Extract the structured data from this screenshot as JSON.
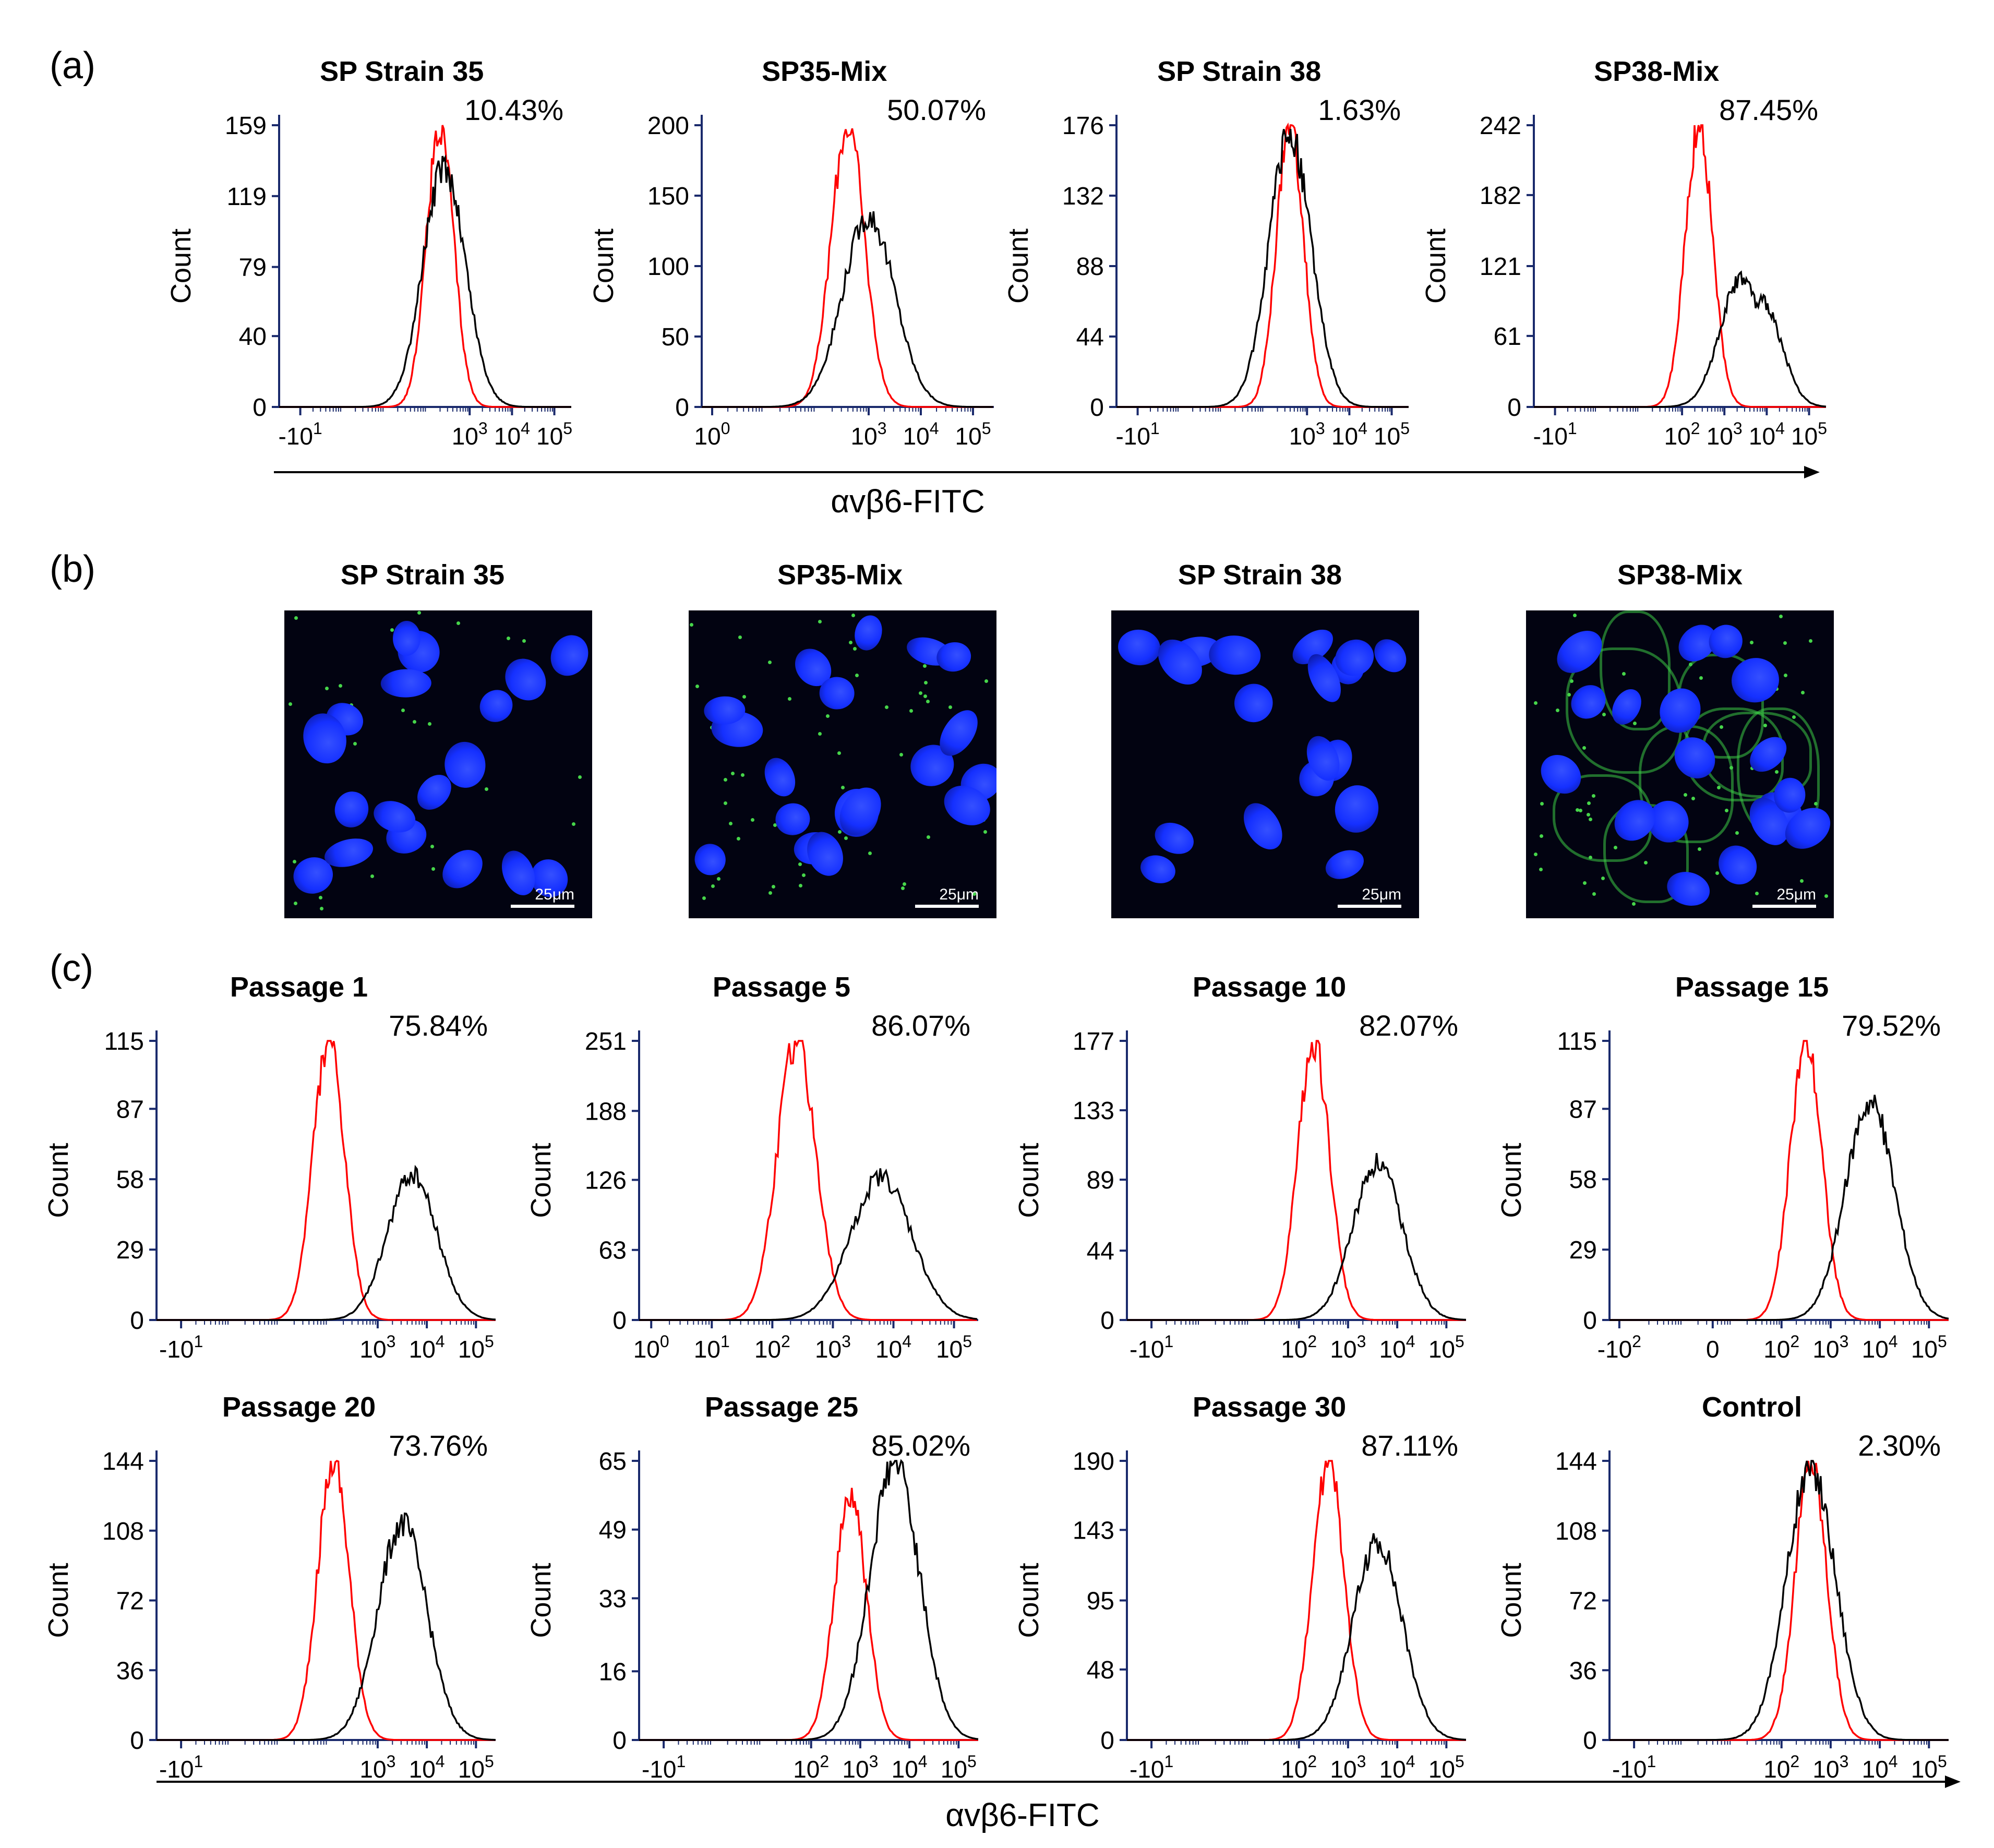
{
  "panel_letters": {
    "a": "(a)",
    "b": "(b)",
    "c": "(c)"
  },
  "x_axis_label": "αvβ6-FITC",
  "y_axis_label": "Count",
  "scale_bar_label": "25μm",
  "colors": {
    "isotype_control": "#ff0000",
    "sample": "#000000",
    "axis": "#1a2a6c",
    "nuclei": "#1530ff",
    "membrane": "#3ccf46",
    "background": "#020311"
  },
  "chart_data": [
    {
      "id": "a1",
      "type": "line",
      "title": "SP Strain 35",
      "percent": "10.43%",
      "ylabel": "Count",
      "xlabel": "αvβ6-FITC",
      "y_ticks": [
        "0",
        "40",
        "79",
        "119",
        "159"
      ],
      "x_ticks": [
        "-10^1",
        "10^3",
        "10^4",
        "10^5"
      ],
      "xscale": "logicle",
      "ylim": [
        0,
        159
      ],
      "series": [
        {
          "color": "red",
          "peak_log10_x": 2.3,
          "peak_count": 159
        },
        {
          "color": "black",
          "peak_log10_x": 2.4,
          "peak_count": 135
        }
      ]
    },
    {
      "id": "a2",
      "type": "line",
      "title": "SP35-Mix",
      "percent": "50.07%",
      "ylabel": "Count",
      "xlabel": "αvβ6-FITC",
      "y_ticks": [
        "0",
        "50",
        "100",
        "150",
        "200"
      ],
      "x_ticks": [
        "10^0",
        "10^3",
        "10^4",
        "10^5"
      ],
      "xscale": "log",
      "ylim": [
        0,
        200
      ],
      "series": [
        {
          "color": "red",
          "peak_log10_x": 2.6,
          "peak_count": 200
        },
        {
          "color": "black",
          "peak_log10_x": 3.0,
          "peak_count": 135
        }
      ]
    },
    {
      "id": "a3",
      "type": "line",
      "title": "SP Strain 38",
      "percent": "1.63%",
      "ylabel": "Count",
      "xlabel": "αvβ6-FITC",
      "y_ticks": [
        "0",
        "44",
        "88",
        "132",
        "176"
      ],
      "x_ticks": [
        "-10^1",
        "10^3",
        "10^4",
        "10^5"
      ],
      "xscale": "logicle",
      "ylim": [
        0,
        176
      ],
      "series": [
        {
          "color": "red",
          "peak_log10_x": 2.6,
          "peak_count": 176
        },
        {
          "color": "black",
          "peak_log10_x": 2.6,
          "peak_count": 170
        }
      ]
    },
    {
      "id": "a4",
      "type": "line",
      "title": "SP38-Mix",
      "percent": "87.45%",
      "ylabel": "Count",
      "xlabel": "αvβ6-FITC",
      "y_ticks": [
        "0",
        "61",
        "121",
        "182",
        "242"
      ],
      "x_ticks": [
        "-10^1",
        "10^2",
        "10^3",
        "10^4",
        "10^5"
      ],
      "xscale": "logicle",
      "ylim": [
        0,
        242
      ],
      "series": [
        {
          "color": "red",
          "peak_log10_x": 2.4,
          "peak_count": 242
        },
        {
          "color": "black",
          "peak_log10_x": 3.4,
          "peak_count": 110,
          "second_peak_log10_x": 3.9,
          "second_peak_count": 90
        }
      ]
    },
    {
      "id": "c1",
      "type": "line",
      "title": "Passage 1",
      "percent": "75.84%",
      "ylabel": "Count",
      "xlabel": "αvβ6-FITC",
      "y_ticks": [
        "0",
        "29",
        "58",
        "87",
        "115"
      ],
      "x_ticks": [
        "-10^1",
        "10^3",
        "10^4",
        "10^5"
      ],
      "xscale": "logicle",
      "ylim": [
        0,
        115
      ],
      "series": [
        {
          "color": "red",
          "peak_log10_x": 2.0,
          "peak_count": 115
        },
        {
          "color": "black",
          "peak_log10_x": 3.7,
          "peak_count": 60
        }
      ]
    },
    {
      "id": "c2",
      "type": "line",
      "title": "Passage 5",
      "percent": "86.07%",
      "ylabel": "Count",
      "xlabel": "αvβ6-FITC",
      "y_ticks": [
        "0",
        "63",
        "126",
        "188",
        "251"
      ],
      "x_ticks": [
        "10^0",
        "10^1",
        "10^2",
        "10^3",
        "10^4",
        "10^5"
      ],
      "xscale": "log",
      "ylim": [
        0,
        251
      ],
      "series": [
        {
          "color": "red",
          "peak_log10_x": 2.4,
          "peak_count": 251
        },
        {
          "color": "black",
          "peak_log10_x": 3.8,
          "peak_count": 128
        }
      ]
    },
    {
      "id": "c3",
      "type": "line",
      "title": "Passage 10",
      "percent": "82.07%",
      "ylabel": "Count",
      "xlabel": "αvβ6-FITC",
      "y_ticks": [
        "0",
        "44",
        "89",
        "133",
        "177"
      ],
      "x_ticks": [
        "-10^1",
        "10^2",
        "10^3",
        "10^4",
        "10^5"
      ],
      "xscale": "logicle",
      "ylim": [
        0,
        177
      ],
      "series": [
        {
          "color": "red",
          "peak_log10_x": 2.3,
          "peak_count": 177
        },
        {
          "color": "black",
          "peak_log10_x": 3.6,
          "peak_count": 100
        }
      ]
    },
    {
      "id": "c4",
      "type": "line",
      "title": "Passage 15",
      "percent": "79.52%",
      "ylabel": "Count",
      "xlabel": "αvβ6-FITC",
      "y_ticks": [
        "0",
        "29",
        "58",
        "87",
        "115"
      ],
      "x_ticks": [
        "-10^2",
        "0",
        "10^2",
        "10^3",
        "10^4",
        "10^5"
      ],
      "xscale": "logicle",
      "ylim": [
        0,
        115
      ],
      "series": [
        {
          "color": "red",
          "peak_log10_x": 2.5,
          "peak_count": 115
        },
        {
          "color": "black",
          "peak_log10_x": 3.8,
          "peak_count": 90
        }
      ]
    },
    {
      "id": "c5",
      "type": "line",
      "title": "Passage 20",
      "percent": "73.76%",
      "ylabel": "Count",
      "xlabel": "αvβ6-FITC",
      "y_ticks": [
        "0",
        "36",
        "72",
        "108",
        "144"
      ],
      "x_ticks": [
        "-10^1",
        "10^3",
        "10^4",
        "10^5"
      ],
      "xscale": "logicle",
      "ylim": [
        0,
        144
      ],
      "series": [
        {
          "color": "red",
          "peak_log10_x": 2.1,
          "peak_count": 144
        },
        {
          "color": "black",
          "peak_log10_x": 3.5,
          "peak_count": 112
        }
      ]
    },
    {
      "id": "c6",
      "type": "line",
      "title": "Passage 25",
      "percent": "85.02%",
      "ylabel": "Count",
      "xlabel": "αvβ6-FITC",
      "y_ticks": [
        "0",
        "16",
        "33",
        "49",
        "65"
      ],
      "x_ticks": [
        "-10^1",
        "10^2",
        "10^3",
        "10^4",
        "10^5"
      ],
      "xscale": "logicle",
      "ylim": [
        0,
        65
      ],
      "series": [
        {
          "color": "red",
          "peak_log10_x": 2.8,
          "peak_count": 58
        },
        {
          "color": "black",
          "peak_log10_x": 3.7,
          "peak_count": 65
        }
      ]
    },
    {
      "id": "c7",
      "type": "line",
      "title": "Passage 30",
      "percent": "87.11%",
      "ylabel": "Count",
      "xlabel": "αvβ6-FITC",
      "y_ticks": [
        "0",
        "48",
        "95",
        "143",
        "190"
      ],
      "x_ticks": [
        "-10^1",
        "10^2",
        "10^3",
        "10^4",
        "10^5"
      ],
      "xscale": "logicle",
      "ylim": [
        0,
        190
      ],
      "series": [
        {
          "color": "red",
          "peak_log10_x": 2.6,
          "peak_count": 190
        },
        {
          "color": "black",
          "peak_log10_x": 3.6,
          "peak_count": 135
        }
      ]
    },
    {
      "id": "c8",
      "type": "line",
      "title": "Control",
      "percent": "2.30%",
      "ylabel": "Count",
      "xlabel": "αvβ6-FITC",
      "y_ticks": [
        "0",
        "36",
        "72",
        "108",
        "144"
      ],
      "x_ticks": [
        "-10^1",
        "10^2",
        "10^3",
        "10^4",
        "10^5"
      ],
      "xscale": "logicle",
      "ylim": [
        0,
        144
      ],
      "series": [
        {
          "color": "red",
          "peak_log10_x": 2.6,
          "peak_count": 144
        },
        {
          "color": "black",
          "peak_log10_x": 2.6,
          "peak_count": 140
        }
      ]
    }
  ],
  "micrographs": [
    {
      "id": "b1",
      "title": "SP Strain 35",
      "membrane_staining": "weak"
    },
    {
      "id": "b2",
      "title": "SP35-Mix",
      "membrane_staining": "moderate"
    },
    {
      "id": "b3",
      "title": "SP Strain 38",
      "membrane_staining": "none"
    },
    {
      "id": "b4",
      "title": "SP38-Mix",
      "membrane_staining": "strong"
    }
  ]
}
